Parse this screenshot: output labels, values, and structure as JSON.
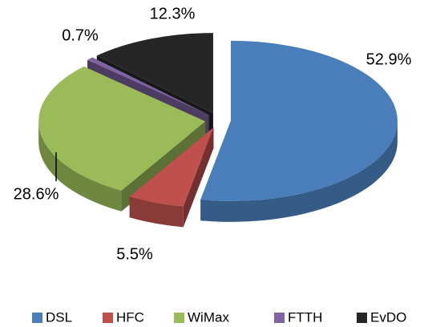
{
  "chart_data": {
    "type": "pie3d",
    "categories": [
      "DSL",
      "HFC",
      "WiMax",
      "FTTH",
      "EvDO"
    ],
    "values": [
      52.9,
      5.5,
      28.6,
      0.7,
      12.3
    ],
    "value_labels": [
      "52.9%",
      "5.5%",
      "28.6%",
      "0.7%",
      "12.3%"
    ],
    "colors": [
      "#4a7ebb",
      "#c0504d",
      "#9bbb59",
      "#8064a2",
      "#262626"
    ],
    "legend": "bottom"
  }
}
